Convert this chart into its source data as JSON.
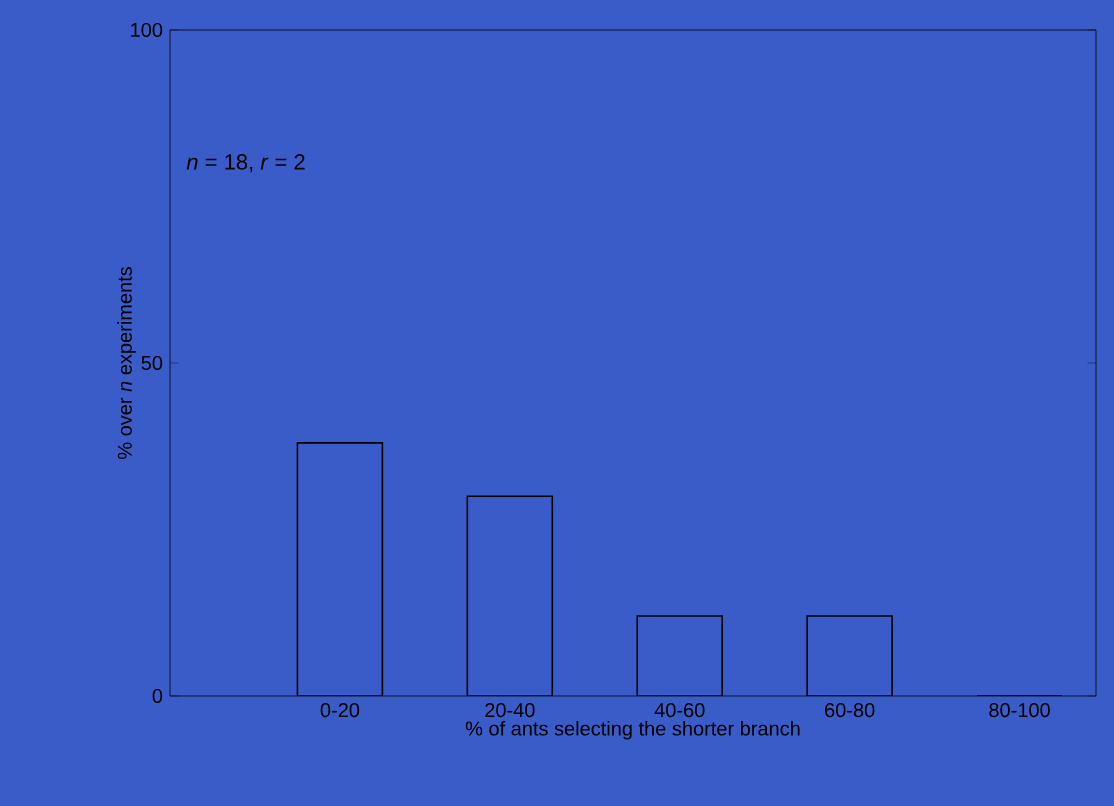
{
  "chart_data": {
    "type": "bar",
    "categories": [
      "0-20",
      "20-40",
      "40-60",
      "60-80",
      "80-100"
    ],
    "values": [
      38,
      30,
      12,
      12,
      0
    ],
    "color": "#3a5cc8",
    "xlabel": "% of ants selecting the shorter branch",
    "ylabel": "% over *n* experiments",
    "ylim": [
      0,
      100
    ],
    "yticks": [
      0,
      50,
      100
    ],
    "annotations": [
      "*n* = 18, *r* = 2"
    ],
    "grid": false
  }
}
